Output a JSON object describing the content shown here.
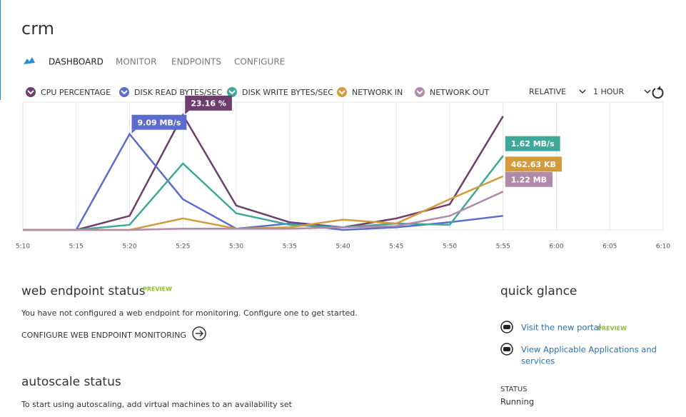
{
  "header": {
    "title": "crm",
    "tabs": [
      "DASHBOARD",
      "MONITOR",
      "ENDPOINTS",
      "CONFIGURE"
    ]
  },
  "chart_data": {
    "type": "line",
    "categories": [
      "5:10",
      "5:15",
      "5:20",
      "5:25",
      "5:30",
      "5:35",
      "5:40",
      "5:45",
      "5:50",
      "5:55",
      "6:00",
      "6:05",
      "6:10"
    ],
    "ylim": [
      0,
      100
    ],
    "grid": true,
    "controls": [
      "RELATIVE",
      "1 HOUR"
    ],
    "series": [
      {
        "name": "CPU PERCENTAGE",
        "color": "#6e3f6e",
        "values": [
          0,
          0,
          11,
          90,
          19,
          6,
          2,
          9,
          20,
          89,
          null,
          null,
          null
        ],
        "callout": "23.16 %"
      },
      {
        "name": "DISK READ BYTES/SEC",
        "color": "#5b6ccc",
        "values": [
          0,
          0,
          75,
          24,
          1,
          5,
          0,
          2,
          6,
          11,
          null,
          null,
          null
        ],
        "callout": "9.09 MB/s"
      },
      {
        "name": "DISK WRITE BYTES/SEC",
        "color": "#3ea89b",
        "values": [
          0,
          0,
          4,
          52,
          13,
          4,
          2,
          5,
          4,
          58,
          null,
          null,
          null
        ],
        "callout": "1.62 MB/s"
      },
      {
        "name": "NETWORK IN",
        "color": "#d49b3c",
        "values": [
          0,
          0,
          0,
          9,
          1,
          2,
          8,
          5,
          24,
          42,
          null,
          null,
          null
        ],
        "callout": "462.63 KB"
      },
      {
        "name": "NETWORK OUT",
        "color": "#b08aa8",
        "values": [
          0,
          0,
          0,
          1,
          1,
          1,
          2,
          3,
          11,
          30,
          null,
          null,
          null
        ],
        "callout": "1.22 MB"
      }
    ]
  },
  "web_endpoint": {
    "title": "web endpoint status",
    "badge": "PREVIEW",
    "text": "You have not configured a web endpoint for monitoring. Configure one to get started.",
    "action": "CONFIGURE WEB ENDPOINT MONITORING"
  },
  "autoscale": {
    "title": "autoscale status",
    "text": "To start using autoscaling, add virtual machines to an availability set"
  },
  "quick_glance": {
    "title": "quick glance",
    "links": [
      {
        "lines": [
          "Visit the new portal"
        ],
        "badge": "PREVIEW"
      },
      {
        "lines": [
          "View Applicable Applications and",
          "services"
        ]
      }
    ],
    "status_label": "STATUS",
    "status": "Running"
  }
}
